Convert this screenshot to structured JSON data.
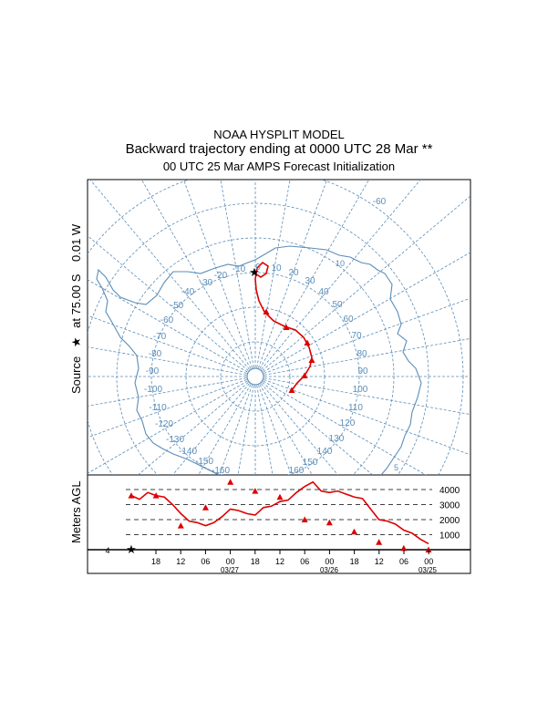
{
  "titles": {
    "line1": "NOAA HYSPLIT MODEL",
    "line2": "Backward trajectory ending at 0000 UTC 28 Mar **",
    "line3": "00 UTC 25 Mar    AMPS  Forecast Initialization"
  },
  "source_label": {
    "prefix": "Source",
    "star": "★",
    "lat_text": "at   75.00 S",
    "lon_text": "0.01 W"
  },
  "map": {
    "colors": {
      "grid": "#5b8db8",
      "trajectory": "#dd0000",
      "source": "#000000"
    },
    "left_meridian_labels": [
      "0",
      "-10",
      "-20",
      "-30",
      "-40",
      "-50",
      "-60",
      "-70",
      "-80",
      "-90",
      "-100",
      "-110",
      "-120",
      "-130",
      "-140",
      "-150",
      "-160"
    ],
    "right_meridian_labels": [
      "10",
      "20",
      "30",
      "40",
      "50",
      "60",
      "70",
      "80",
      "90",
      "100",
      "110",
      "120",
      "130",
      "140",
      "150",
      "160"
    ],
    "bottom_label": "-160",
    "top_right_label": "-60",
    "far_right_labels": [
      "5",
      "10"
    ]
  },
  "profile": {
    "ylabel": "Meters AGL",
    "height_labels": [
      "4000",
      "3000",
      "2000",
      "1000"
    ],
    "time_labels": [
      "18",
      "12",
      "06",
      "00",
      "18",
      "12",
      "06",
      "00",
      "18",
      "12",
      "06",
      "00"
    ],
    "date_labels": [
      "03/27",
      "03/26",
      "03/25"
    ],
    "start_marker": "4"
  },
  "chart_data": {
    "type": "line",
    "title": "Backward trajectory ending at 0000 UTC 28 Mar **",
    "ylabel": "Meters AGL",
    "ylim": [
      0,
      4800
    ],
    "x_hours_before_end": [
      0,
      6,
      12,
      18,
      24,
      30,
      36,
      42,
      48,
      54,
      60,
      66,
      72
    ],
    "y": [
      0,
      100,
      500,
      1200,
      1800,
      2000,
      3500,
      3900,
      4500,
      2800,
      1600,
      3600,
      3600
    ],
    "markers": "triangles every 6 h, star at source"
  }
}
